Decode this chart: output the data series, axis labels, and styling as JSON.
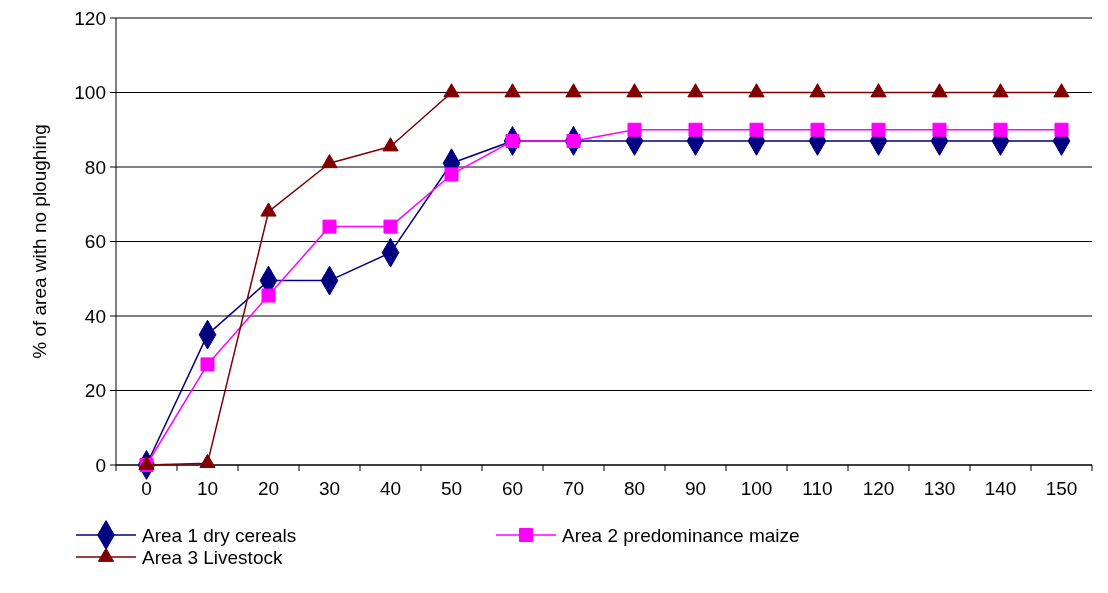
{
  "chart_data": {
    "type": "line",
    "ylabel": "% of area with no ploughing",
    "categories": [
      "0",
      "10",
      "20",
      "30",
      "40",
      "50",
      "60",
      "70",
      "80",
      "90",
      "100",
      "110",
      "120",
      "130",
      "140",
      "150"
    ],
    "series": [
      {
        "name": "Area 1 dry cereals",
        "color": "#000080",
        "marker": "diamond",
        "values": [
          0,
          35,
          49.5,
          49.5,
          57,
          81,
          87,
          87,
          87,
          87,
          87,
          87,
          87,
          87,
          87,
          87
        ]
      },
      {
        "name": "Area 2 predominance maize",
        "color": "#ff00ff",
        "marker": "square",
        "values": [
          0,
          27,
          45.5,
          64,
          64,
          78,
          87,
          87,
          90,
          90,
          90,
          90,
          90,
          90,
          90,
          90
        ]
      },
      {
        "name": "Area 3 Livestock",
        "color": "#800000",
        "marker": "triangle",
        "values": [
          0,
          0.5,
          68,
          81,
          85.5,
          100,
          100,
          100,
          100,
          100,
          100,
          100,
          100,
          100,
          100,
          100
        ]
      }
    ],
    "ylim": [
      0,
      120
    ],
    "yticks": [
      0,
      20,
      40,
      60,
      80,
      100,
      120
    ],
    "grid": "y",
    "legend": "bottom"
  }
}
